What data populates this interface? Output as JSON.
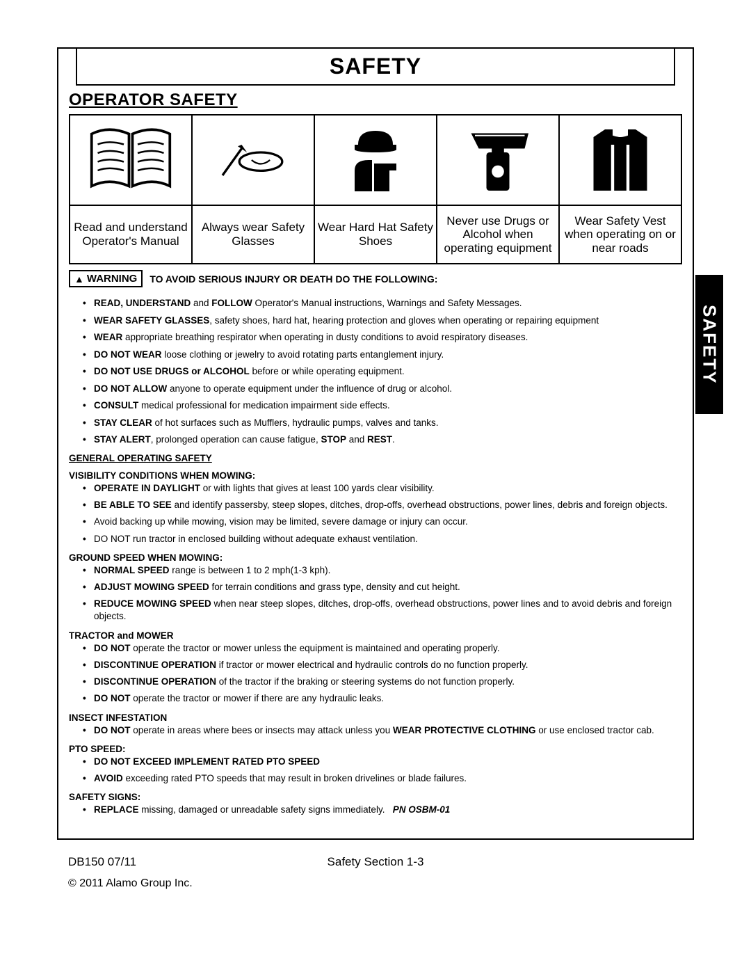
{
  "header": {
    "title": "SAFETY",
    "section_title": "OPERATOR SAFETY"
  },
  "side_tab": "SAFETY",
  "pictograms": [
    {
      "caption": "Read and understand Operator's Manual"
    },
    {
      "caption": "Always wear Safety Glasses"
    },
    {
      "caption": "Wear Hard Hat Safety Shoes"
    },
    {
      "caption": "Never use Drugs or Alcohol when operating equipment"
    },
    {
      "caption": "Wear Safety Vest when operating on or near roads"
    }
  ],
  "warning": {
    "label": "WARNING",
    "text": "TO AVOID SERIOUS INJURY OR DEATH DO THE FOLLOWING:"
  },
  "main_bullets": [
    "<b>READ, UNDERSTAND</b> and <b>FOLLOW</b> Operator's Manual instructions, Warnings and Safety Messages.",
    "<b>WEAR SAFETY GLASSES</b>, safety shoes, hard hat, hearing protection and gloves when operating or repairing equipment",
    "<b>WEAR</b> appropriate breathing respirator when operating in dusty conditions to avoid respiratory diseases.",
    "<b>DO NOT WEAR</b> loose clothing or jewelry to avoid rotating parts entanglement injury.",
    "<b>DO NOT USE DRUGS or ALCOHOL</b> before or while operating equipment.",
    "<b>DO NOT ALLOW</b> anyone to operate equipment under the influence of drug or alcohol.",
    "<b>CONSULT</b> medical professional for medication impairment side effects.",
    "<b>STAY CLEAR</b> of hot surfaces such as Mufflers, hydraulic pumps, valves and tanks.",
    "<b>STAY ALERT</b>, prolonged operation can cause fatigue, <b>STOP</b> and <b>REST</b>."
  ],
  "general_heading": "GENERAL OPERATING SAFETY",
  "sections": [
    {
      "title": "VISIBILITY CONDITIONS WHEN MOWING:",
      "items": [
        "<b>OPERATE IN DAYLIGHT</b> or with lights that gives at least 100 yards clear visibility.",
        "<b>BE ABLE TO SEE</b> and identify passersby, steep slopes, ditches, drop-offs, overhead obstructions, power lines, debris and foreign objects.",
        "Avoid backing up while mowing, vision may be limited, severe damage or injury can occur.",
        "DO NOT run tractor in enclosed building without adequate exhaust ventilation."
      ]
    },
    {
      "title": "GROUND SPEED WHEN MOWING:",
      "items": [
        "<b>NORMAL SPEED</b> range is between 1 to 2 mph(1-3 kph).",
        "<b>ADJUST MOWING SPEED</b> for terrain conditions and grass type, density and cut height.",
        "<b>REDUCE MOWING SPEED</b> when near steep slopes, ditches, drop-offs, overhead obstructions, power lines and to avoid debris and foreign objects."
      ]
    },
    {
      "title": "TRACTOR and MOWER",
      "items": [
        "<b>DO NOT</b> operate the tractor or mower unless the equipment is maintained and operating properly.",
        "<b>DISCONTINUE OPERATION</b> if tractor or mower electrical and hydraulic controls do no function properly.",
        "<b>DISCONTINUE OPERATION</b> of the tractor if the braking or steering systems do not function properly.",
        "<b>DO NOT</b> operate the tractor or mower if there are any hydraulic leaks."
      ]
    },
    {
      "title": "INSECT INFESTATION",
      "items": [
        "<b>DO NOT</b> operate in areas where bees or insects may attack unless you <b>WEAR PROTECTIVE CLOTHING</b> or use enclosed tractor cab."
      ]
    },
    {
      "title": "PTO SPEED:",
      "items": [
        "<b>DO NOT EXCEED IMPLEMENT RATED PTO SPEED</b>",
        "<b>AVOID</b> exceeding rated PTO speeds that may result in broken drivelines or blade failures."
      ]
    },
    {
      "title": "SAFETY SIGNS:",
      "items": [
        "<b>REPLACE</b> missing, damaged or unreadable safety signs immediately. &nbsp; <b><i>PN OSBM-01</i></b>"
      ]
    }
  ],
  "footer": {
    "left": "DB150   07/11",
    "center": "Safety Section 1-3",
    "copyright": "© 2011 Alamo Group Inc."
  }
}
